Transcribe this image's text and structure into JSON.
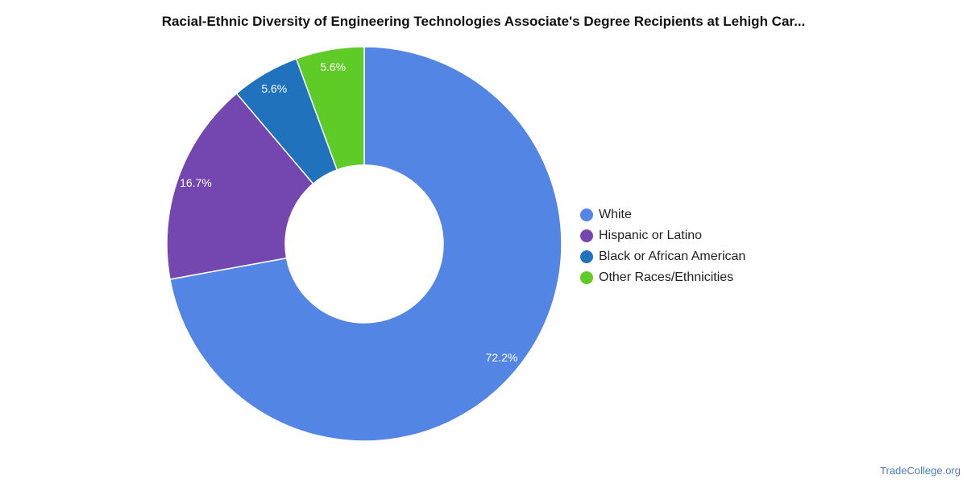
{
  "chart_data": {
    "type": "pie",
    "title": "Racial-Ethnic Diversity of Engineering Technologies Associate's Degree Recipients at Lehigh Car...",
    "slices": [
      {
        "name": "White",
        "value": 72.2,
        "label": "72.2%",
        "color": "#5386e4"
      },
      {
        "name": "Hispanic or Latino",
        "value": 16.7,
        "label": "16.7%",
        "color": "#7346b0"
      },
      {
        "name": "Black or African American",
        "value": 5.6,
        "label": "5.6%",
        "color": "#1f72bb"
      },
      {
        "name": "Other Races/Ethnicities",
        "value": 5.6,
        "label": "5.6%",
        "color": "#5fcb26"
      }
    ],
    "donut": true,
    "legend_position": "right"
  },
  "watermark": "TradeCollege.org"
}
